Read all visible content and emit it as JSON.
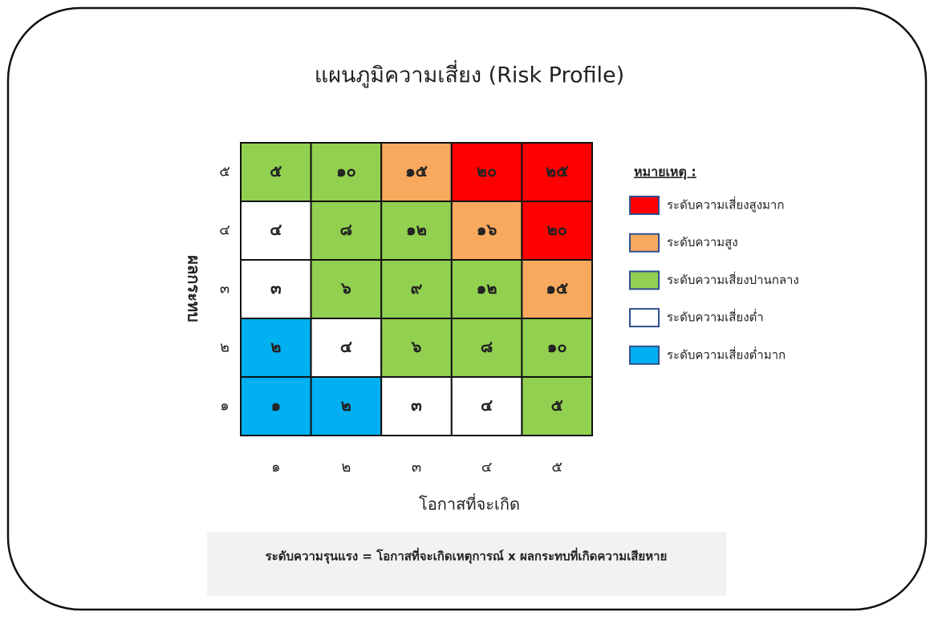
{
  "title": "แผนภูมิความเสี่ยง (Risk Profile)",
  "y_axis": {
    "title": "ผลกระทบ",
    "labels": [
      "๕",
      "๔",
      "๓",
      "๒",
      "๑"
    ]
  },
  "x_axis": {
    "title": "โอกาสที่จะเกิด",
    "labels": [
      "๑",
      "๒",
      "๓",
      "๔",
      "๕"
    ]
  },
  "grid": {
    "rows": [
      [
        {
          "text": "๕",
          "color": "#92d050"
        },
        {
          "text": "๑๐",
          "color": "#92d050"
        },
        {
          "text": "๑๕",
          "color": "#f8a95e"
        },
        {
          "text": "๒๐",
          "color": "#ff0000"
        },
        {
          "text": "๒๕",
          "color": "#ff0000"
        }
      ],
      [
        {
          "text": "๔",
          "color": "#ffffff"
        },
        {
          "text": "๘",
          "color": "#92d050"
        },
        {
          "text": "๑๒",
          "color": "#92d050"
        },
        {
          "text": "๑๖",
          "color": "#f8a95e"
        },
        {
          "text": "๒๐",
          "color": "#ff0000"
        }
      ],
      [
        {
          "text": "๓",
          "color": "#ffffff"
        },
        {
          "text": "๖",
          "color": "#92d050"
        },
        {
          "text": "๙",
          "color": "#92d050"
        },
        {
          "text": "๑๒",
          "color": "#92d050"
        },
        {
          "text": "๑๕",
          "color": "#f8a95e"
        }
      ],
      [
        {
          "text": "๒",
          "color": "#00b0f0"
        },
        {
          "text": "๔",
          "color": "#ffffff"
        },
        {
          "text": "๖",
          "color": "#92d050"
        },
        {
          "text": "๘",
          "color": "#92d050"
        },
        {
          "text": "๑๐",
          "color": "#92d050"
        }
      ],
      [
        {
          "text": "๑",
          "color": "#00b0f0"
        },
        {
          "text": "๒",
          "color": "#00b0f0"
        },
        {
          "text": "๓",
          "color": "#ffffff"
        },
        {
          "text": "๔",
          "color": "#ffffff"
        },
        {
          "text": "๕",
          "color": "#92d050"
        }
      ]
    ]
  },
  "legend": {
    "title": "หมายเหตุ :",
    "items": [
      {
        "label": "ระดับความเสี่ยงสูงมาก",
        "color": "#ff0000"
      },
      {
        "label": "ระดับความสูง",
        "color": "#f8a95e"
      },
      {
        "label": "ระดับความเสี่ยงปานกลาง",
        "color": "#92d050"
      },
      {
        "label": "ระดับความเสี่ยงต่ำ",
        "color": "#ffffff"
      },
      {
        "label": "ระดับความเสี่ยงต่ำมาก",
        "color": "#00b0f0"
      }
    ]
  },
  "formula": "ระดับความรุนแรง = โอกาสที่จะเกิดเหตุการณ์ x ผลกระทบที่เกิดความเสียหาย"
}
